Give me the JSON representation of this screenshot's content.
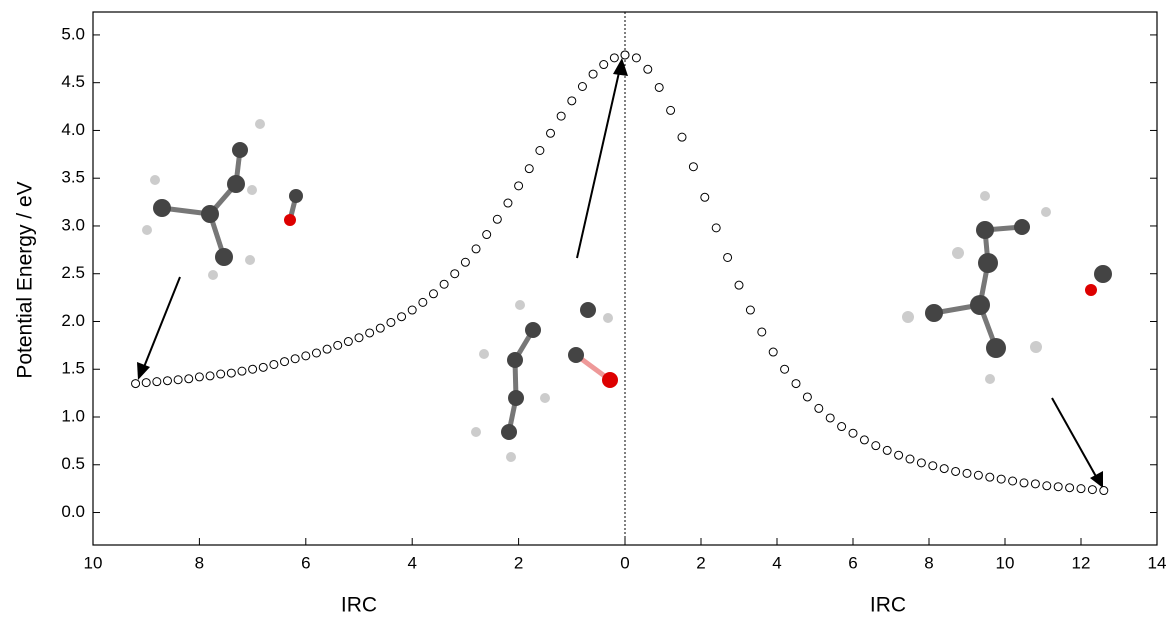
{
  "chart_data": [
    {
      "type": "scatter",
      "ylabel": "Potential Energy / eV",
      "xlabel": "IRC",
      "xlim": [
        10,
        0
      ],
      "xticks": [
        10,
        8,
        6,
        4,
        2,
        0
      ],
      "ylim": [
        -0.34,
        5.24
      ],
      "yticks": [
        {
          "value": 0,
          "label": "0.0"
        },
        0.5,
        {
          "value": 1,
          "label": "1.0"
        },
        1.5,
        {
          "value": 2,
          "label": "2.0"
        },
        2.5,
        {
          "value": 3,
          "label": "3.0"
        },
        3.5,
        {
          "value": 4,
          "label": "4.0"
        },
        4.5,
        {
          "value": 5,
          "label": "5.0"
        }
      ],
      "series": [
        {
          "color": "#ffffff",
          "x": [
            9.2,
            9.0,
            8.8,
            8.6,
            8.4,
            8.2,
            8.0,
            7.8,
            7.6,
            7.4,
            7.2,
            7.0,
            6.8,
            6.6,
            6.4,
            6.2,
            6.0,
            5.8,
            5.6,
            5.4,
            5.2,
            5.0,
            4.8,
            4.6,
            4.4,
            4.2,
            4.0,
            3.8,
            3.6,
            3.4,
            3.2,
            3.0,
            2.8,
            2.6,
            2.4,
            2.2,
            2.0,
            1.8,
            1.6,
            1.4,
            1.2,
            1.0,
            0.8,
            0.6,
            0.4,
            0.2,
            0.0
          ],
          "values": [
            1.35,
            1.36,
            1.37,
            1.38,
            1.39,
            1.4,
            1.42,
            1.43,
            1.45,
            1.46,
            1.48,
            1.5,
            1.52,
            1.55,
            1.58,
            1.61,
            1.64,
            1.67,
            1.71,
            1.75,
            1.79,
            1.83,
            1.88,
            1.93,
            1.99,
            2.05,
            2.12,
            2.2,
            2.29,
            2.39,
            2.5,
            2.62,
            2.76,
            2.91,
            3.07,
            3.24,
            3.42,
            3.6,
            3.79,
            3.97,
            4.15,
            4.31,
            4.46,
            4.59,
            4.69,
            4.76,
            4.79
          ]
        }
      ]
    },
    {
      "type": "scatter",
      "xlabel": "IRC",
      "xlim": [
        0,
        14
      ],
      "xticks": [
        2,
        4,
        6,
        8,
        10,
        12,
        14
      ],
      "series": [
        {
          "color": "#ffffff",
          "x": [
            0,
            0.3,
            0.6,
            0.9,
            1.2,
            1.5,
            1.8,
            2.1,
            2.4,
            2.7,
            3.0,
            3.3,
            3.6,
            3.9,
            4.2,
            4.5,
            4.8,
            5.1,
            5.4,
            5.7,
            6.0,
            6.3,
            6.6,
            6.9,
            7.2,
            7.5,
            7.8,
            8.1,
            8.4,
            8.7,
            9.0,
            9.3,
            9.6,
            9.9,
            10.2,
            10.5,
            10.8,
            11.1,
            11.4,
            11.7,
            12.0,
            12.3,
            12.6
          ],
          "values": [
            4.79,
            4.76,
            4.64,
            4.45,
            4.21,
            3.93,
            3.62,
            3.3,
            2.98,
            2.67,
            2.38,
            2.12,
            1.89,
            1.68,
            1.5,
            1.35,
            1.21,
            1.09,
            0.99,
            0.9,
            0.83,
            0.76,
            0.7,
            0.65,
            0.6,
            0.56,
            0.52,
            0.49,
            0.46,
            0.43,
            0.41,
            0.39,
            0.37,
            0.35,
            0.33,
            0.31,
            0.3,
            0.28,
            0.27,
            0.26,
            0.25,
            0.24,
            0.23
          ]
        }
      ]
    }
  ]
}
